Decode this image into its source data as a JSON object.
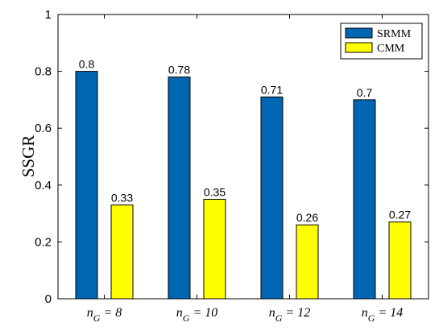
{
  "chart_data": {
    "type": "bar",
    "ylabel": "SSGR",
    "ylim": [
      0,
      1
    ],
    "yticks": [
      "0",
      "0.2",
      "0.4",
      "0.6",
      "0.8",
      "1"
    ],
    "categories": [
      {
        "base": "n",
        "sub": "G",
        "rest": " = 8"
      },
      {
        "base": "n",
        "sub": "G",
        "rest": " = 10"
      },
      {
        "base": "n",
        "sub": "G",
        "rest": " = 12"
      },
      {
        "base": "n",
        "sub": "G",
        "rest": " = 14"
      }
    ],
    "series": [
      {
        "name": "SRMM",
        "color": "#0066b3",
        "values": [
          0.8,
          0.78,
          0.71,
          0.7
        ],
        "labels": [
          "0.8",
          "0.78",
          "0.71",
          "0.7"
        ]
      },
      {
        "name": "CMM",
        "color": "#ffff00",
        "values": [
          0.33,
          0.35,
          0.26,
          0.27
        ],
        "labels": [
          "0.33",
          "0.35",
          "0.26",
          "0.27"
        ]
      }
    ],
    "legend_position": "top-right",
    "grid": false
  }
}
